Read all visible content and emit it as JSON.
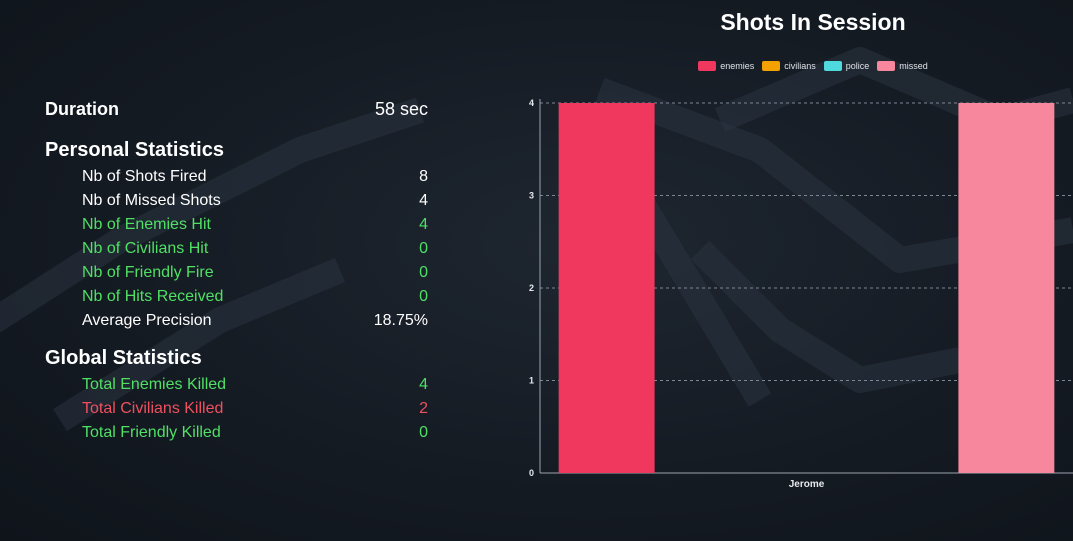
{
  "duration": {
    "label": "Duration",
    "value": "58 sec"
  },
  "personal": {
    "title": "Personal Statistics",
    "items": [
      {
        "label": "Nb of Shots Fired",
        "value": "8"
      },
      {
        "label": "Nb of Missed Shots",
        "value": "4"
      },
      {
        "label": "Nb of Enemies Hit",
        "value": "4"
      },
      {
        "label": "Nb of Civilians Hit",
        "value": "0"
      },
      {
        "label": "Nb of Friendly Fire",
        "value": "0"
      },
      {
        "label": "Nb of Hits Received",
        "value": "0"
      },
      {
        "label": "Average Precision",
        "value": "18.75%"
      }
    ]
  },
  "global": {
    "title": "Global Statistics",
    "items": [
      {
        "label": "Total Enemies Killed",
        "value": "4"
      },
      {
        "label": "Total Civilians Killed",
        "value": "2"
      },
      {
        "label": "Total Friendly Killed",
        "value": "0"
      }
    ]
  },
  "colors": {
    "positive": "#4fe065",
    "negative": "#ef5060",
    "enemies": "#f0385e",
    "civilians": "#f2a100",
    "police": "#4fd9de",
    "missed": "#f6879c"
  },
  "chart_data": {
    "type": "bar",
    "title": "Shots In Session",
    "categories": [
      "Jerome"
    ],
    "series": [
      {
        "name": "enemies",
        "values": [
          4
        ]
      },
      {
        "name": "civilians",
        "values": [
          0
        ]
      },
      {
        "name": "police",
        "values": [
          0
        ]
      },
      {
        "name": "missed",
        "values": [
          4
        ]
      }
    ],
    "ylim": [
      0,
      4
    ],
    "yticks": [
      0,
      1,
      2,
      3,
      4
    ],
    "grid": true,
    "legend_position": "top"
  }
}
